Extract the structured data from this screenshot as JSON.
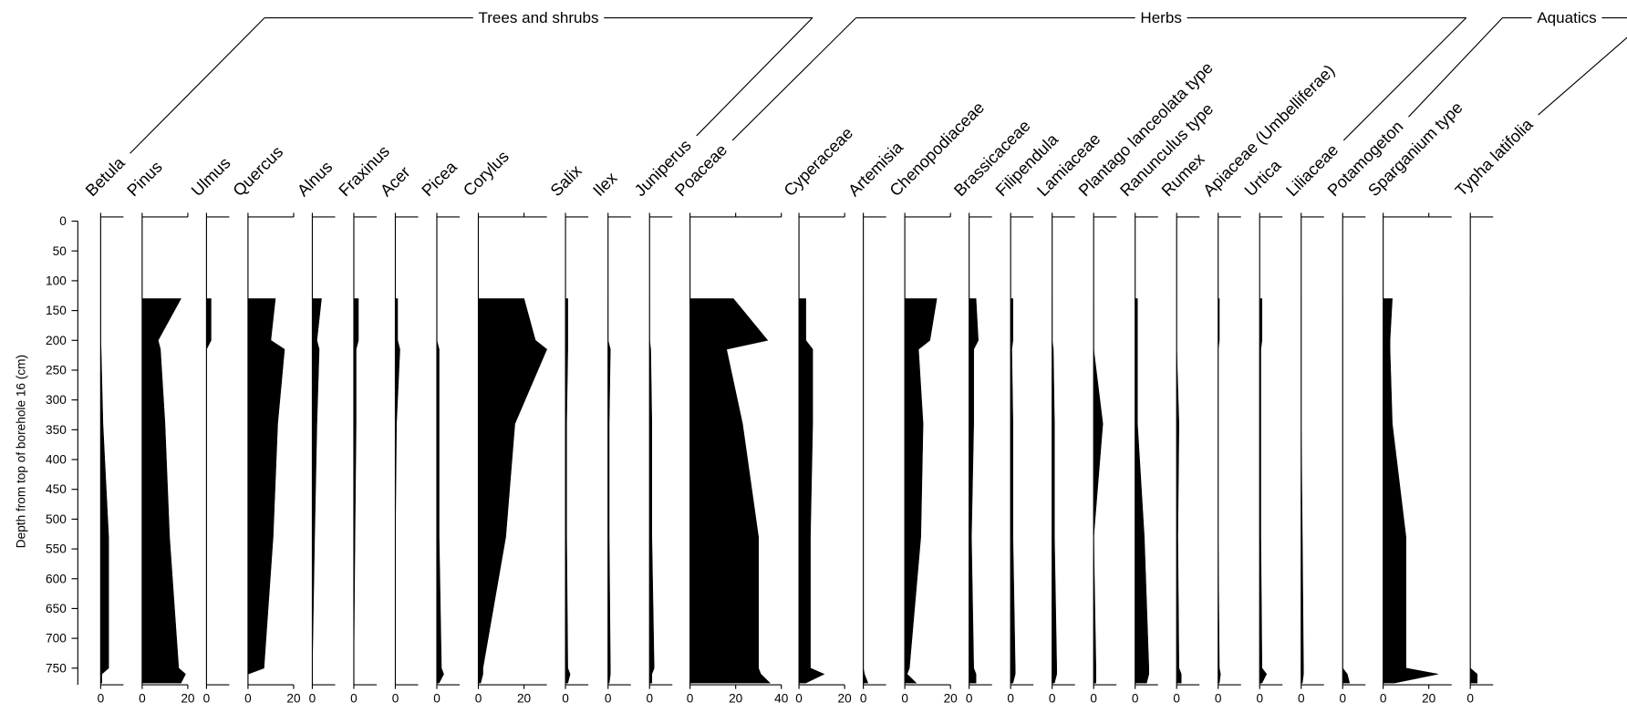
{
  "chart_data": {
    "type": "stratigraphic-area",
    "y_label": "Depth from top of borehole 16 (cm)",
    "ylim": [
      -7,
      778
    ],
    "yticks": [
      0,
      50,
      100,
      150,
      200,
      250,
      300,
      350,
      400,
      450,
      500,
      550,
      600,
      650,
      700,
      750
    ],
    "depths": [
      130,
      200,
      215,
      340,
      530,
      750,
      760,
      775
    ],
    "color": "#000000",
    "groups": [
      {
        "name": "Trees and shrubs",
        "taxa": [
          {
            "name": "Betula",
            "xlim": [
              0,
              10
            ],
            "xticks": [
              0
            ],
            "values": [
              0,
              0,
              0.2,
              1,
              3.5,
              3.5,
              0.5,
              0.5
            ]
          },
          {
            "name": "Pinus",
            "xlim": [
              0,
              20
            ],
            "xticks": [
              0,
              20
            ],
            "values": [
              17,
              7,
              8,
              10,
              12,
              16,
              19,
              17
            ]
          },
          {
            "name": "Ulmus",
            "xlim": [
              0,
              10
            ],
            "xticks": [
              0
            ],
            "values": [
              2,
              2,
              0,
              0,
              0,
              0,
              0,
              0
            ]
          },
          {
            "name": "Quercus",
            "xlim": [
              0,
              20
            ],
            "xticks": [
              0,
              20
            ],
            "values": [
              12,
              10,
              16,
              13,
              11,
              7,
              0,
              0
            ]
          },
          {
            "name": "Alnus",
            "xlim": [
              0,
              10
            ],
            "xticks": [
              0
            ],
            "values": [
              4,
              2,
              3,
              2,
              1,
              0,
              0,
              0
            ]
          },
          {
            "name": "Fraxinus",
            "xlim": [
              0,
              10
            ],
            "xticks": [
              0
            ],
            "values": [
              2,
              2,
              1,
              1,
              0.5,
              0,
              0,
              0
            ]
          },
          {
            "name": "Acer",
            "xlim": [
              0,
              10
            ],
            "xticks": [
              0
            ],
            "values": [
              1,
              1,
              2,
              0.5,
              0,
              0,
              0,
              0
            ]
          },
          {
            "name": "Picea",
            "xlim": [
              0,
              10
            ],
            "xticks": [
              0
            ],
            "values": [
              0,
              0,
              1,
              1,
              1,
              2,
              3,
              1
            ]
          },
          {
            "name": "Corylus",
            "xlim": [
              0,
              30
            ],
            "xticks": [
              0,
              20
            ],
            "values": [
              20,
              25,
              30,
              16,
              12,
              2,
              2,
              1
            ]
          },
          {
            "name": "Salix",
            "xlim": [
              0,
              10
            ],
            "xticks": [
              0
            ],
            "values": [
              1,
              1,
              1,
              0.5,
              0.5,
              1,
              2,
              1
            ]
          },
          {
            "name": "Ilex",
            "xlim": [
              0,
              10
            ],
            "xticks": [
              0
            ],
            "values": [
              0,
              0,
              1,
              0.5,
              0.5,
              1,
              1,
              0.5
            ]
          },
          {
            "name": "Juniperus",
            "xlim": [
              0,
              10
            ],
            "xticks": [
              0
            ],
            "values": [
              0,
              0,
              0.5,
              1,
              1,
              2,
              1,
              1
            ]
          }
        ]
      },
      {
        "name": "Herbs",
        "taxa": [
          {
            "name": "Poaceae",
            "xlim": [
              0,
              40
            ],
            "xticks": [
              0,
              20,
              40
            ],
            "values": [
              19,
              34,
              16,
              23,
              30,
              30,
              31,
              35
            ]
          },
          {
            "name": "Cyperaceae",
            "xlim": [
              0,
              20
            ],
            "xticks": [
              0,
              20
            ],
            "values": [
              3,
              3,
              6,
              6,
              5,
              5,
              11,
              3
            ]
          },
          {
            "name": "Artemisia",
            "xlim": [
              0,
              10
            ],
            "xticks": [
              0
            ],
            "values": [
              0,
              0,
              0,
              0,
              0,
              0,
              0.5,
              2
            ]
          },
          {
            "name": "Chenopodiaceae",
            "xlim": [
              0,
              20
            ],
            "xticks": [
              0,
              20
            ],
            "values": [
              14,
              11,
              6,
              8,
              7,
              2,
              1,
              5
            ]
          },
          {
            "name": "Brassicaceae",
            "xlim": [
              0,
              10
            ],
            "xticks": [
              0
            ],
            "values": [
              3,
              4,
              2,
              2,
              1,
              2,
              3,
              3
            ]
          },
          {
            "name": "Filipendula",
            "xlim": [
              0,
              10
            ],
            "xticks": [
              0
            ],
            "values": [
              1,
              1,
              0.5,
              1,
              1,
              2,
              2,
              1
            ]
          },
          {
            "name": "Lamiaceae",
            "xlim": [
              0,
              10
            ],
            "xticks": [
              0
            ],
            "values": [
              0,
              0,
              0.5,
              1,
              1,
              2,
              2,
              1
            ]
          },
          {
            "name": "Plantago lanceolata type",
            "xlim": [
              0,
              10
            ],
            "xticks": [
              0
            ],
            "values": [
              0,
              0,
              0,
              4,
              0,
              1,
              1,
              1
            ]
          },
          {
            "name": "Ranunculus type",
            "xlim": [
              0,
              10
            ],
            "xticks": [
              0
            ],
            "values": [
              1,
              1,
              1,
              1,
              4,
              6,
              6,
              5
            ]
          },
          {
            "name": "Rumex",
            "xlim": [
              0,
              10
            ],
            "xticks": [
              0
            ],
            "values": [
              0,
              0,
              0,
              1,
              0.5,
              1,
              2,
              2
            ]
          },
          {
            "name": "Apiaceae (Umbelliferae)",
            "xlim": [
              0,
              10
            ],
            "xticks": [
              0
            ],
            "values": [
              0.5,
              0.5,
              0,
              0,
              0,
              0.5,
              1,
              0.5
            ]
          },
          {
            "name": "Urtica",
            "xlim": [
              0,
              10
            ],
            "xticks": [
              0
            ],
            "values": [
              1,
              1,
              0.5,
              0.5,
              0.5,
              1,
              3,
              1
            ]
          },
          {
            "name": "Liliaceae",
            "xlim": [
              0,
              10
            ],
            "xticks": [
              0
            ],
            "values": [
              0,
              0,
              0,
              0,
              0.5,
              1,
              1,
              0.5
            ]
          }
        ]
      },
      {
        "name": "Aquatics",
        "taxa": [
          {
            "name": "Potamogeton",
            "xlim": [
              0,
              10
            ],
            "xticks": [
              0
            ],
            "values": [
              0,
              0,
              0,
              0,
              0,
              0,
              2,
              3
            ]
          },
          {
            "name": "Sparganium type",
            "xlim": [
              0,
              30
            ],
            "xticks": [
              0,
              20
            ],
            "values": [
              4,
              3,
              3,
              4,
              10,
              10,
              24,
              5
            ]
          },
          {
            "name": "Typha latifolia",
            "xlim": [
              0,
              10
            ],
            "xticks": [
              0
            ],
            "values": [
              0,
              0,
              0,
              0,
              0,
              0,
              3,
              3
            ]
          }
        ]
      }
    ]
  }
}
